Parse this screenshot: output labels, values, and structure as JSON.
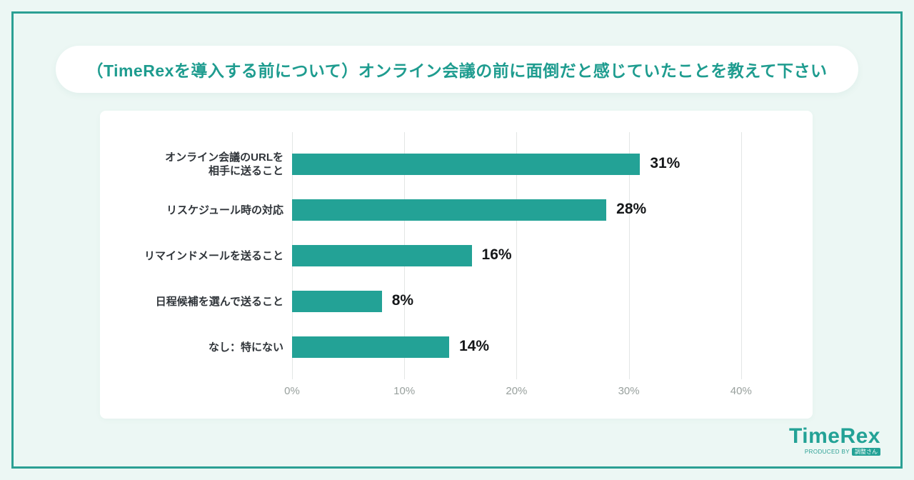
{
  "header": {
    "title": "（TimeRexを導入する前について）オンライン会議の前に面倒だと感じていたことを教えて下さい"
  },
  "chart_data": {
    "type": "bar",
    "orientation": "horizontal",
    "title": "（TimeRexを導入する前について）オンライン会議の前に面倒だと感じていたことを教えて下さい",
    "categories": [
      "オンライン会議のURLを\n相手に送ること",
      "リスケジュール時の対応",
      "リマインドメールを送ること",
      "日程候補を選んで送ること",
      "なし：特にない"
    ],
    "values": [
      31,
      28,
      16,
      8,
      14
    ],
    "value_labels": [
      "31%",
      "28%",
      "16%",
      "8%",
      "14%"
    ],
    "xlabel": "",
    "ylabel": "",
    "xlim": [
      0,
      46
    ],
    "x_ticks": [
      {
        "value": 0,
        "label": "0%"
      },
      {
        "value": 10,
        "label": "10%"
      },
      {
        "value": 20,
        "label": "20%"
      },
      {
        "value": 30,
        "label": "30%"
      },
      {
        "value": 40,
        "label": "40%"
      }
    ],
    "grid": "vertical",
    "legend": "none",
    "bar_color": "#23A296"
  },
  "branding": {
    "logo_text": "TimeRex",
    "produced_by": "PRODUCED BY",
    "producer_badge": "調整さん"
  },
  "colors": {
    "background": "#ECF7F4",
    "frame_border": "#2BA094",
    "accent_teal": "#23A296",
    "panel": "#FFFFFF",
    "grid": "#E3E6E5",
    "tick_text": "#98A09D",
    "category_text": "#30353A",
    "value_text": "#151719",
    "header_text": "#1E9C8F"
  }
}
